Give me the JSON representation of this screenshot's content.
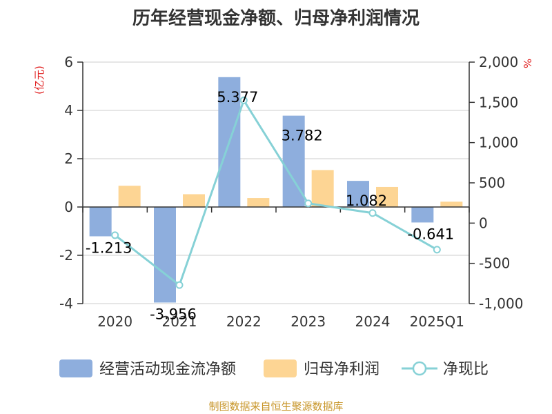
{
  "title": "历年经营现金净额、归母净利润情况",
  "source": "制图数据来自恒生聚源数据库",
  "colors": {
    "cash_flow": "#8eaedd",
    "net_profit": "#fdd594",
    "ratio": "#86d1d6",
    "unit": "#e01e1e",
    "source": "#c8962a"
  },
  "chart_data": {
    "type": "bar",
    "categories": [
      "2020",
      "2021",
      "2022",
      "2023",
      "2024",
      "2025Q1"
    ],
    "left_unit": "(亿元)",
    "right_unit": "%",
    "y_left": {
      "ylim": [
        -4,
        6
      ],
      "ticks": [
        "6",
        "4",
        "2",
        "0",
        "-2",
        "-4"
      ]
    },
    "y_right": {
      "ylim": [
        -1000,
        2000
      ],
      "ticks": [
        "2,000",
        "1,500",
        "1,000",
        "500",
        "0",
        "-500",
        "-1,000"
      ]
    },
    "series": [
      {
        "name": "经营活动现金流净额",
        "type": "bar",
        "axis": "left",
        "values": [
          -1.213,
          -3.956,
          5.377,
          3.782,
          1.082,
          -0.641
        ],
        "labels": [
          "-1.213",
          "-3.956",
          "5.377",
          "3.782",
          "1.082",
          "-0.641"
        ]
      },
      {
        "name": "归母净利润",
        "type": "bar",
        "axis": "left",
        "values": [
          0.88,
          0.53,
          0.37,
          1.53,
          0.83,
          0.22
        ]
      },
      {
        "name": "净现比",
        "type": "line",
        "axis": "right",
        "values": [
          -150,
          -770,
          1525,
          245,
          125,
          -330
        ]
      }
    ],
    "legend_position": "bottom",
    "grid": true
  }
}
